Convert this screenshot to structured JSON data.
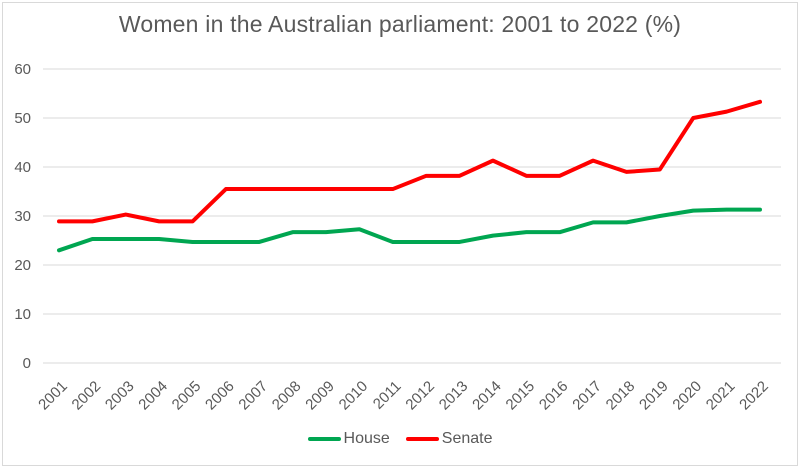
{
  "chart_data": {
    "type": "line",
    "title": "Women in the Australian parliament: 2001 to 2022 (%)",
    "x": [
      "2001",
      "2002",
      "2003",
      "2004",
      "2005",
      "2006",
      "2007",
      "2008",
      "2009",
      "2010",
      "2011",
      "2012",
      "2013",
      "2014",
      "2015",
      "2016",
      "2017",
      "2018",
      "2019",
      "2020",
      "2021",
      "2022"
    ],
    "series": [
      {
        "name": "House",
        "color": "#00a651",
        "values": [
          23.0,
          25.3,
          25.3,
          25.3,
          24.7,
          24.7,
          24.7,
          26.7,
          26.7,
          27.3,
          24.7,
          24.7,
          24.7,
          26.0,
          26.7,
          26.7,
          28.7,
          28.7,
          30.0,
          31.1,
          31.3,
          31.3
        ]
      },
      {
        "name": "Senate",
        "color": "#ff0000",
        "values": [
          28.9,
          28.9,
          30.3,
          28.9,
          28.9,
          35.5,
          35.5,
          35.5,
          35.5,
          35.5,
          35.5,
          38.2,
          38.2,
          41.3,
          38.2,
          38.2,
          41.3,
          39.0,
          39.5,
          50.0,
          51.3,
          53.3
        ]
      }
    ],
    "ylim": [
      0,
      60
    ],
    "yticks": [
      0,
      10,
      20,
      30,
      40,
      50,
      60
    ],
    "grid": true,
    "xlabel": "",
    "ylabel": "",
    "legend_position": "bottom"
  },
  "colors": {
    "text": "#595959",
    "gridline": "#d9d9d9",
    "border": "#d9d9d9",
    "background": "#ffffff"
  }
}
